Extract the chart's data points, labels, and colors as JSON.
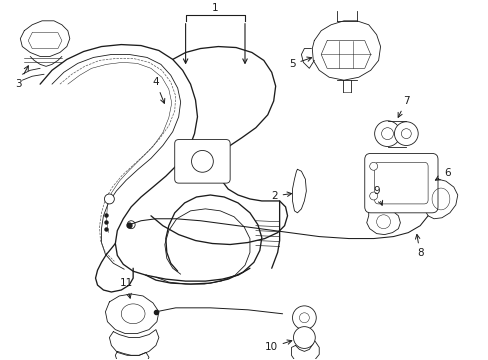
{
  "bg_color": "#ffffff",
  "lc": "#1a1a1a",
  "fig_width": 4.89,
  "fig_height": 3.6,
  "dpi": 100,
  "lw": 0.9,
  "lt": 0.55,
  "fs": 7.5
}
